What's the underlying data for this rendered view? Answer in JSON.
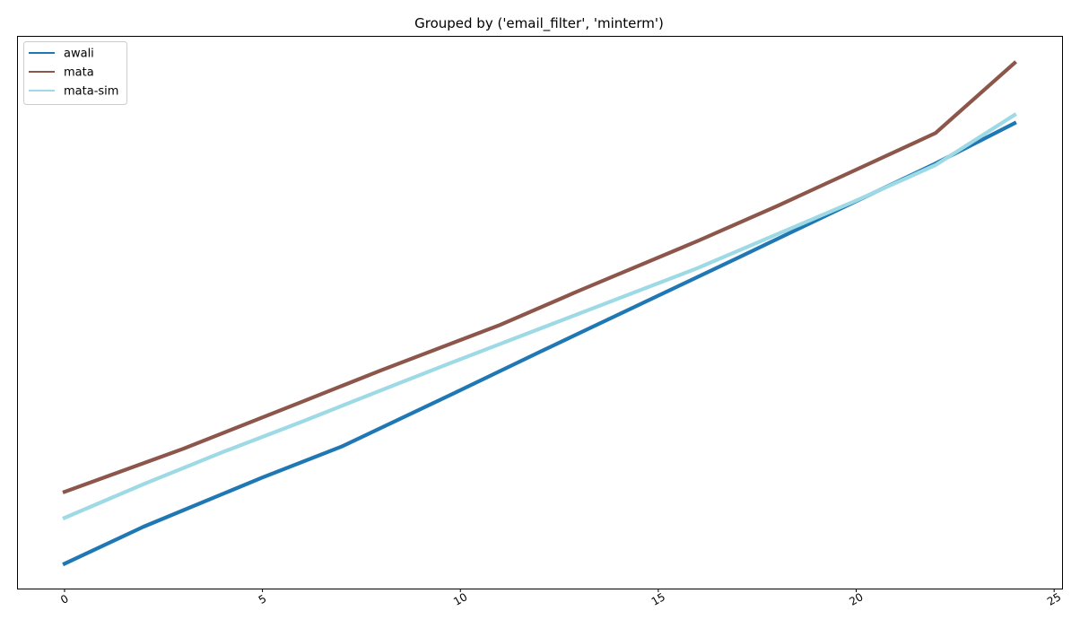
{
  "chart_data": {
    "type": "line",
    "title": "Grouped by ('email_filter', 'minterm')",
    "xlabel": "",
    "ylabel": "",
    "xlim": [
      -1.2,
      25.2
    ],
    "ylim": [
      0,
      100
    ],
    "x_ticks": [
      0,
      5,
      10,
      15,
      20,
      25
    ],
    "x_tick_labels": [
      "0",
      "5",
      "10",
      "15",
      "20",
      "25"
    ],
    "x_tick_rotation_deg": -30,
    "y_ticks_shown": false,
    "grid": false,
    "legend_position": "upper-left",
    "series": [
      {
        "name": "awali",
        "color": "#1f77b4",
        "x": [
          0,
          2,
          5,
          7,
          10,
          12,
          15,
          17,
          20,
          22,
          24
        ],
        "y": [
          4.5,
          11.2,
          20.1,
          25.7,
          35.9,
          42.8,
          53.0,
          59.8,
          70.1,
          76.9,
          84.2
        ]
      },
      {
        "name": "mata",
        "color": "#8c564b",
        "x": [
          0,
          3,
          6,
          8,
          11,
          13,
          16,
          18,
          20,
          22,
          24
        ],
        "y": [
          17.5,
          25.3,
          33.8,
          39.5,
          47.7,
          53.9,
          62.9,
          69.2,
          75.8,
          82.4,
          95.1
        ]
      },
      {
        "name": "mata-sim",
        "color": "#9edae5",
        "x": [
          0,
          2,
          4,
          6,
          8,
          10,
          12,
          14,
          16,
          18,
          20,
          22,
          24
        ],
        "y": [
          12.8,
          18.9,
          24.7,
          30.2,
          35.9,
          41.5,
          47.0,
          52.5,
          58.0,
          64.1,
          70.2,
          76.6,
          85.7
        ]
      }
    ]
  }
}
